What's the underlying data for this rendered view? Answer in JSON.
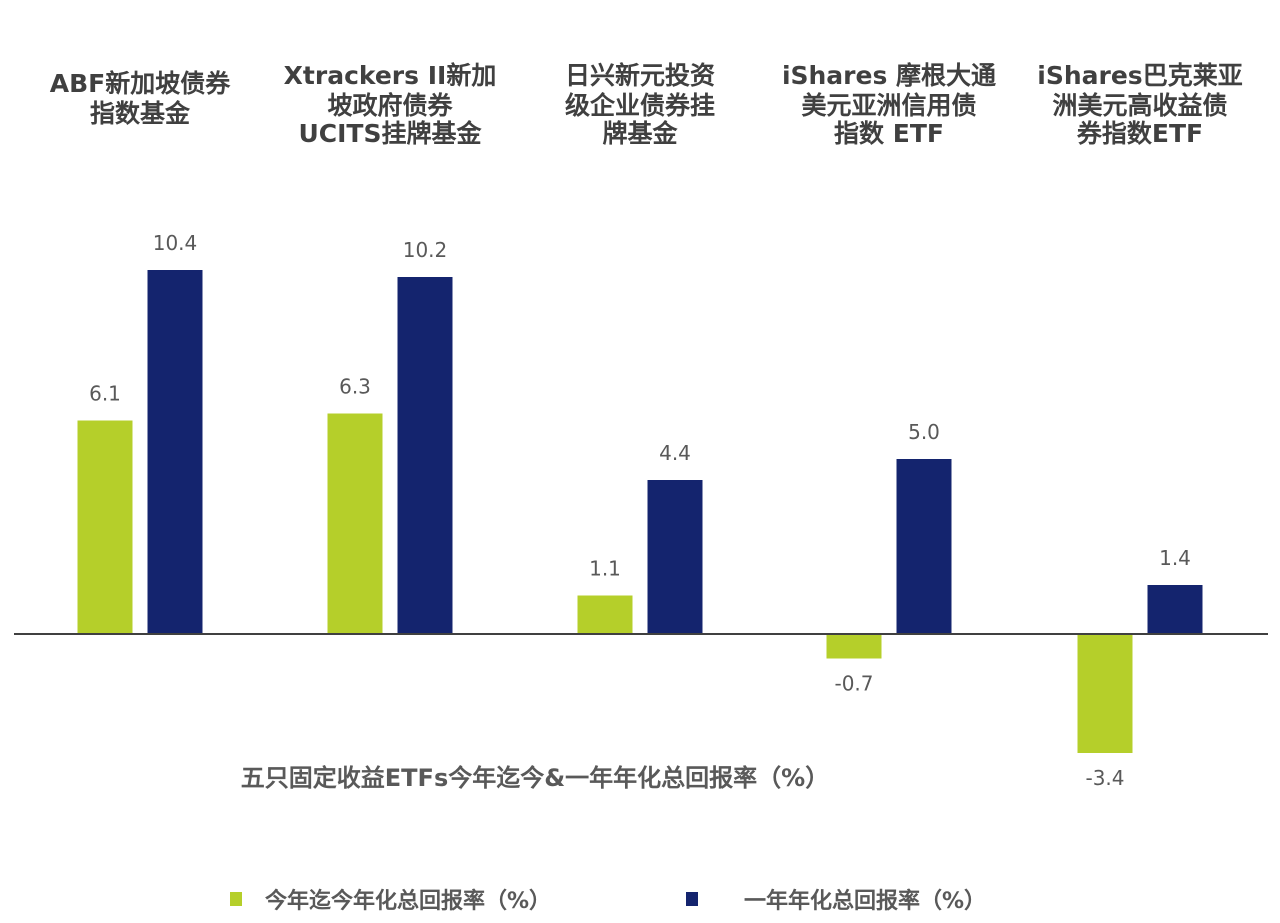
{
  "chart_data": {
    "type": "bar",
    "title": "五只固定收益ETFs今年迄今&一年年化总回报率（%）",
    "categories": [
      [
        "ABF新加坡债券",
        "指数基金"
      ],
      [
        "Xtrackers II新加",
        "坡政府债券",
        "UCITS挂牌基金"
      ],
      [
        "日兴新元投资",
        "级企业债券挂",
        "牌基金"
      ],
      [
        "iShares 摩根大通",
        "美元亚洲信用债",
        "指数 ETF"
      ],
      [
        "iShares巴克莱亚",
        "洲美元高收益债",
        "券指数ETF"
      ]
    ],
    "series": [
      {
        "name": "今年迄今年化总回报率（%）",
        "color": "#b5cf2a",
        "values": [
          6.1,
          6.3,
          1.1,
          -0.7,
          -3.4
        ],
        "labels": [
          "6.1",
          "6.3",
          "1.1",
          "-0.7",
          "-3.4"
        ]
      },
      {
        "name": "一年年化总回报率（%）",
        "color": "#14246e",
        "values": [
          10.4,
          10.2,
          4.4,
          5.0,
          1.4
        ],
        "labels": [
          "10.4",
          "10.2",
          "4.4",
          "5.0",
          "1.4"
        ]
      }
    ],
    "ylim": [
      -4.5,
      12
    ],
    "axis_color": "#404040",
    "grid": false,
    "legend_position": "bottom"
  }
}
